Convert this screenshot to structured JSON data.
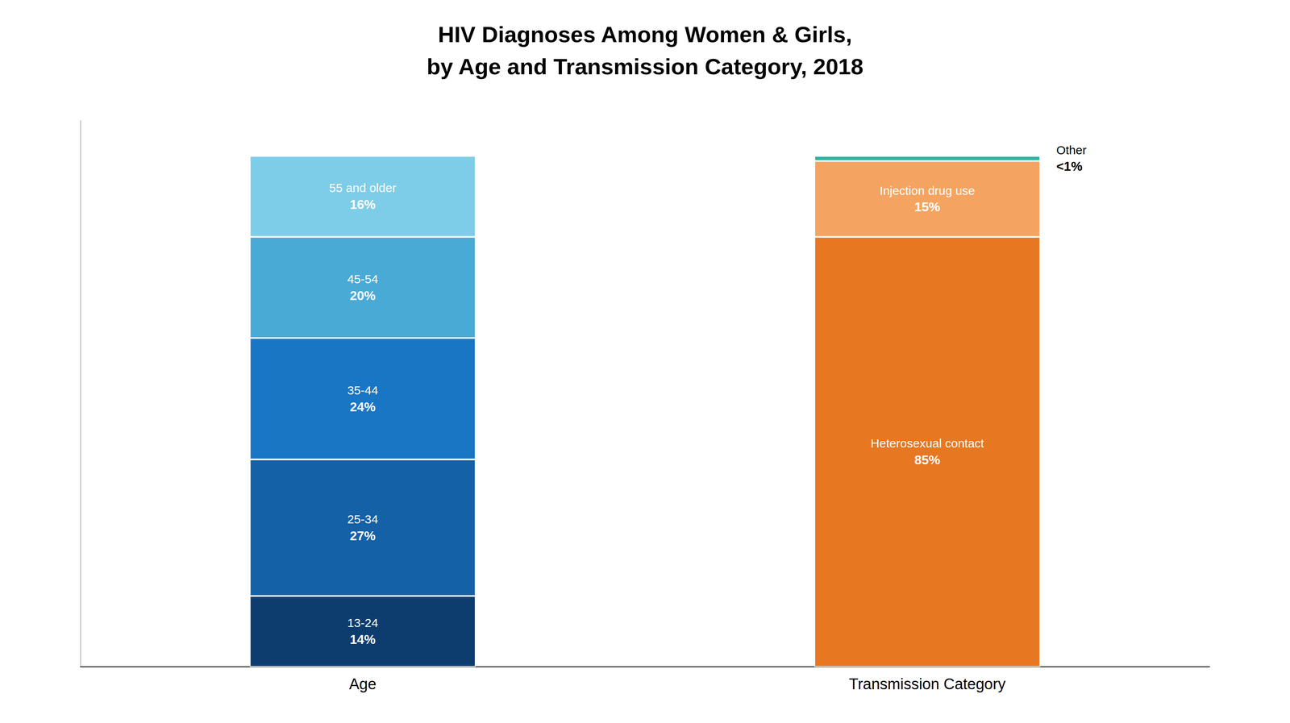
{
  "chart_data": {
    "type": "bar",
    "title": "HIV Diagnoses Among Women & Girls,\nby Age and Transmission Category, 2018",
    "categories": [
      "Age",
      "Transmission Category"
    ],
    "stacked": true,
    "data_labels": true,
    "grid": false,
    "tick_labels": "x",
    "ylim": [
      0,
      108
    ],
    "yticks": [],
    "series": [
      {
        "name": "13-24",
        "color": "#0d3d6e",
        "values": [
          14,
          null
        ],
        "value_labels": [
          "14%",
          null
        ]
      },
      {
        "name": "25-34",
        "color": "#1461a8",
        "values": [
          27,
          null
        ],
        "value_labels": [
          "27%",
          null
        ]
      },
      {
        "name": "35-44",
        "color": "#1976c5",
        "values": [
          24,
          null
        ],
        "value_labels": [
          "24%",
          null
        ]
      },
      {
        "name": "45-54",
        "color": "#4aaad6",
        "values": [
          20,
          null
        ],
        "value_labels": [
          "20%",
          null
        ]
      },
      {
        "name": "55 and older",
        "color": "#7ecde8",
        "values": [
          16,
          null
        ],
        "value_labels": [
          "16%",
          null
        ]
      },
      {
        "name": "Heterosexual contact",
        "color": "#e87722",
        "values": [
          null,
          85
        ],
        "value_labels": [
          null,
          "85%"
        ]
      },
      {
        "name": "Injection drug use",
        "color": "#f4a460",
        "values": [
          null,
          15
        ],
        "value_labels": [
          null,
          "15%"
        ]
      },
      {
        "name": "Other",
        "color": "#2cb5a0",
        "values": [
          null,
          1
        ],
        "value_labels": [
          null,
          "<1%"
        ]
      }
    ]
  }
}
